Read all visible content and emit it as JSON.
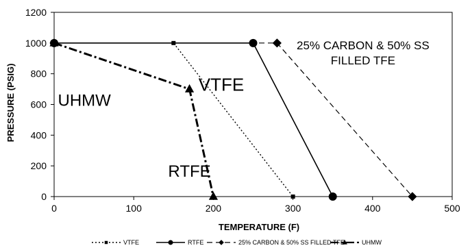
{
  "chart_data": {
    "type": "line",
    "xlabel": "TEMPERATURE (F)",
    "ylabel": "PRESSURE (PSIG)",
    "xlim": [
      0,
      500
    ],
    "ylim": [
      0,
      1200
    ],
    "xticks": [
      "0",
      "100",
      "200",
      "300",
      "400",
      "500"
    ],
    "yticks": [
      "0",
      "200",
      "400",
      "600",
      "800",
      "1000",
      "1200"
    ],
    "grid": false,
    "legend_position": "bottom",
    "series": [
      {
        "name": "VTFE",
        "marker": "square",
        "dash": "dotted",
        "x": [
          0,
          150,
          300
        ],
        "y": [
          1000,
          1000,
          0
        ]
      },
      {
        "name": "RTFE",
        "marker": "circle",
        "dash": "solid",
        "x": [
          0,
          250,
          350
        ],
        "y": [
          1000,
          1000,
          0
        ]
      },
      {
        "name": "25% CARBON & 50% SS FILLED TFE",
        "marker": "diamond",
        "dash": "dashed",
        "x": [
          0,
          280,
          450
        ],
        "y": [
          1000,
          1000,
          0
        ]
      },
      {
        "name": "UHMW",
        "marker": "triangle",
        "dash": "dashdot",
        "x": [
          0,
          170,
          200
        ],
        "y": [
          1000,
          700,
          0
        ]
      }
    ],
    "annotations": [
      {
        "lines": [
          "25% CARBON & 50% SS",
          "FILLED TFE"
        ],
        "x": 388,
        "y": 960
      },
      {
        "lines": [
          "VTFE"
        ],
        "x": 210,
        "y": 690
      },
      {
        "lines": [
          "UHMW"
        ],
        "x": 38,
        "y": 590
      },
      {
        "lines": [
          "RTFE"
        ],
        "x": 170,
        "y": 130
      }
    ]
  }
}
